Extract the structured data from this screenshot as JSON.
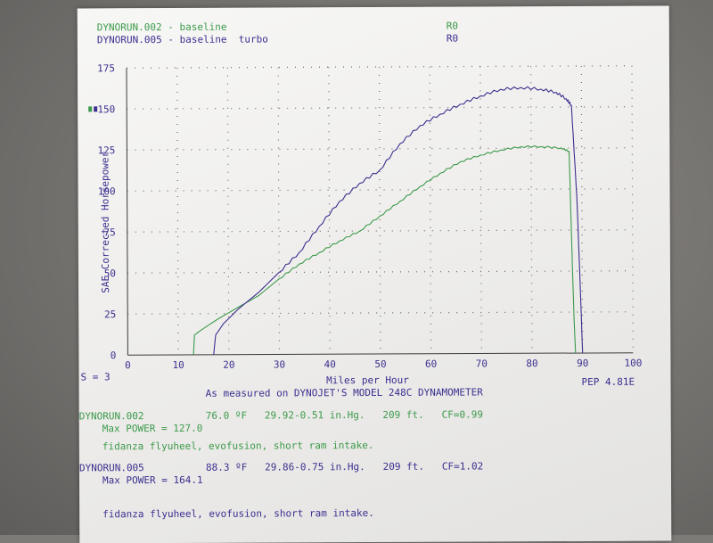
{
  "header": {
    "run1_label": "DYNORUN.002 - baseline",
    "run1_code": "R0",
    "run2_label": "DYNORUN.005 - baseline  turbo",
    "run2_code": "R0"
  },
  "chart_data": {
    "type": "line",
    "xlabel": "Miles per Hour",
    "ylabel": "SAE Corrected Horsepower",
    "xlim": [
      0,
      100
    ],
    "ylim": [
      0,
      175
    ],
    "x_ticks": [
      "0",
      "10",
      "20",
      "30",
      "40",
      "50",
      "60",
      "70",
      "80",
      "90",
      "100"
    ],
    "y_ticks": [
      "0",
      "25",
      "50",
      "75",
      "100",
      "125",
      "150",
      "175"
    ],
    "grid": "dotted",
    "series": [
      {
        "color": "#3c9a4a",
        "points": [
          [
            13,
            0
          ],
          [
            13.2,
            12
          ],
          [
            15,
            16
          ],
          [
            18,
            22
          ],
          [
            22,
            29
          ],
          [
            26,
            36
          ],
          [
            30,
            46
          ],
          [
            34,
            55
          ],
          [
            38,
            62
          ],
          [
            42,
            69
          ],
          [
            46,
            75
          ],
          [
            50,
            84
          ],
          [
            54,
            93
          ],
          [
            58,
            102
          ],
          [
            62,
            110
          ],
          [
            66,
            117
          ],
          [
            70,
            121
          ],
          [
            74,
            124
          ],
          [
            78,
            126
          ],
          [
            82,
            126
          ],
          [
            86,
            125
          ],
          [
            87.5,
            123
          ],
          [
            88,
            60
          ],
          [
            88.3,
            25
          ],
          [
            88.6,
            0
          ]
        ]
      },
      {
        "color": "#3b2f8f",
        "points": [
          [
            17,
            0
          ],
          [
            17.4,
            12
          ],
          [
            19,
            19
          ],
          [
            22,
            28
          ],
          [
            26,
            38
          ],
          [
            30,
            50
          ],
          [
            34,
            62
          ],
          [
            38,
            78
          ],
          [
            42,
            93
          ],
          [
            46,
            104
          ],
          [
            50,
            112
          ],
          [
            54,
            128
          ],
          [
            58,
            139
          ],
          [
            62,
            146
          ],
          [
            66,
            152
          ],
          [
            70,
            157
          ],
          [
            74,
            161
          ],
          [
            78,
            162
          ],
          [
            82,
            161
          ],
          [
            85,
            159
          ],
          [
            87,
            155
          ],
          [
            88,
            151
          ],
          [
            89,
            95
          ],
          [
            89.6,
            40
          ],
          [
            90,
            0
          ]
        ]
      }
    ]
  },
  "labels": {
    "smoothing": "S = 3",
    "pep": "PEP 4.81E",
    "measured_by": "As measured on DYNOJET'S MODEL 248C DYNAMOMETER"
  },
  "run1": {
    "name": "DYNORUN.002",
    "conditions": "76.0 ºF   29.92-0.51 in.Hg.   209 ft.   CF=0.99",
    "max_power": "Max POWER = 127.0",
    "notes": "fidanza flyuheel, evofusion, short ram intake."
  },
  "run2": {
    "name": "DYNORUN.005",
    "conditions": "88.3 ºF   29.86-0.75 in.Hg.   209 ft.   CF=1.02",
    "max_power": "Max POWER = 164.1",
    "notes": "fidanza flyuheel, evofusion, short ram intake."
  },
  "colors": {
    "green": "#3c9a4a",
    "blue": "#3b2f8f",
    "grid": "#6b6b6b"
  }
}
